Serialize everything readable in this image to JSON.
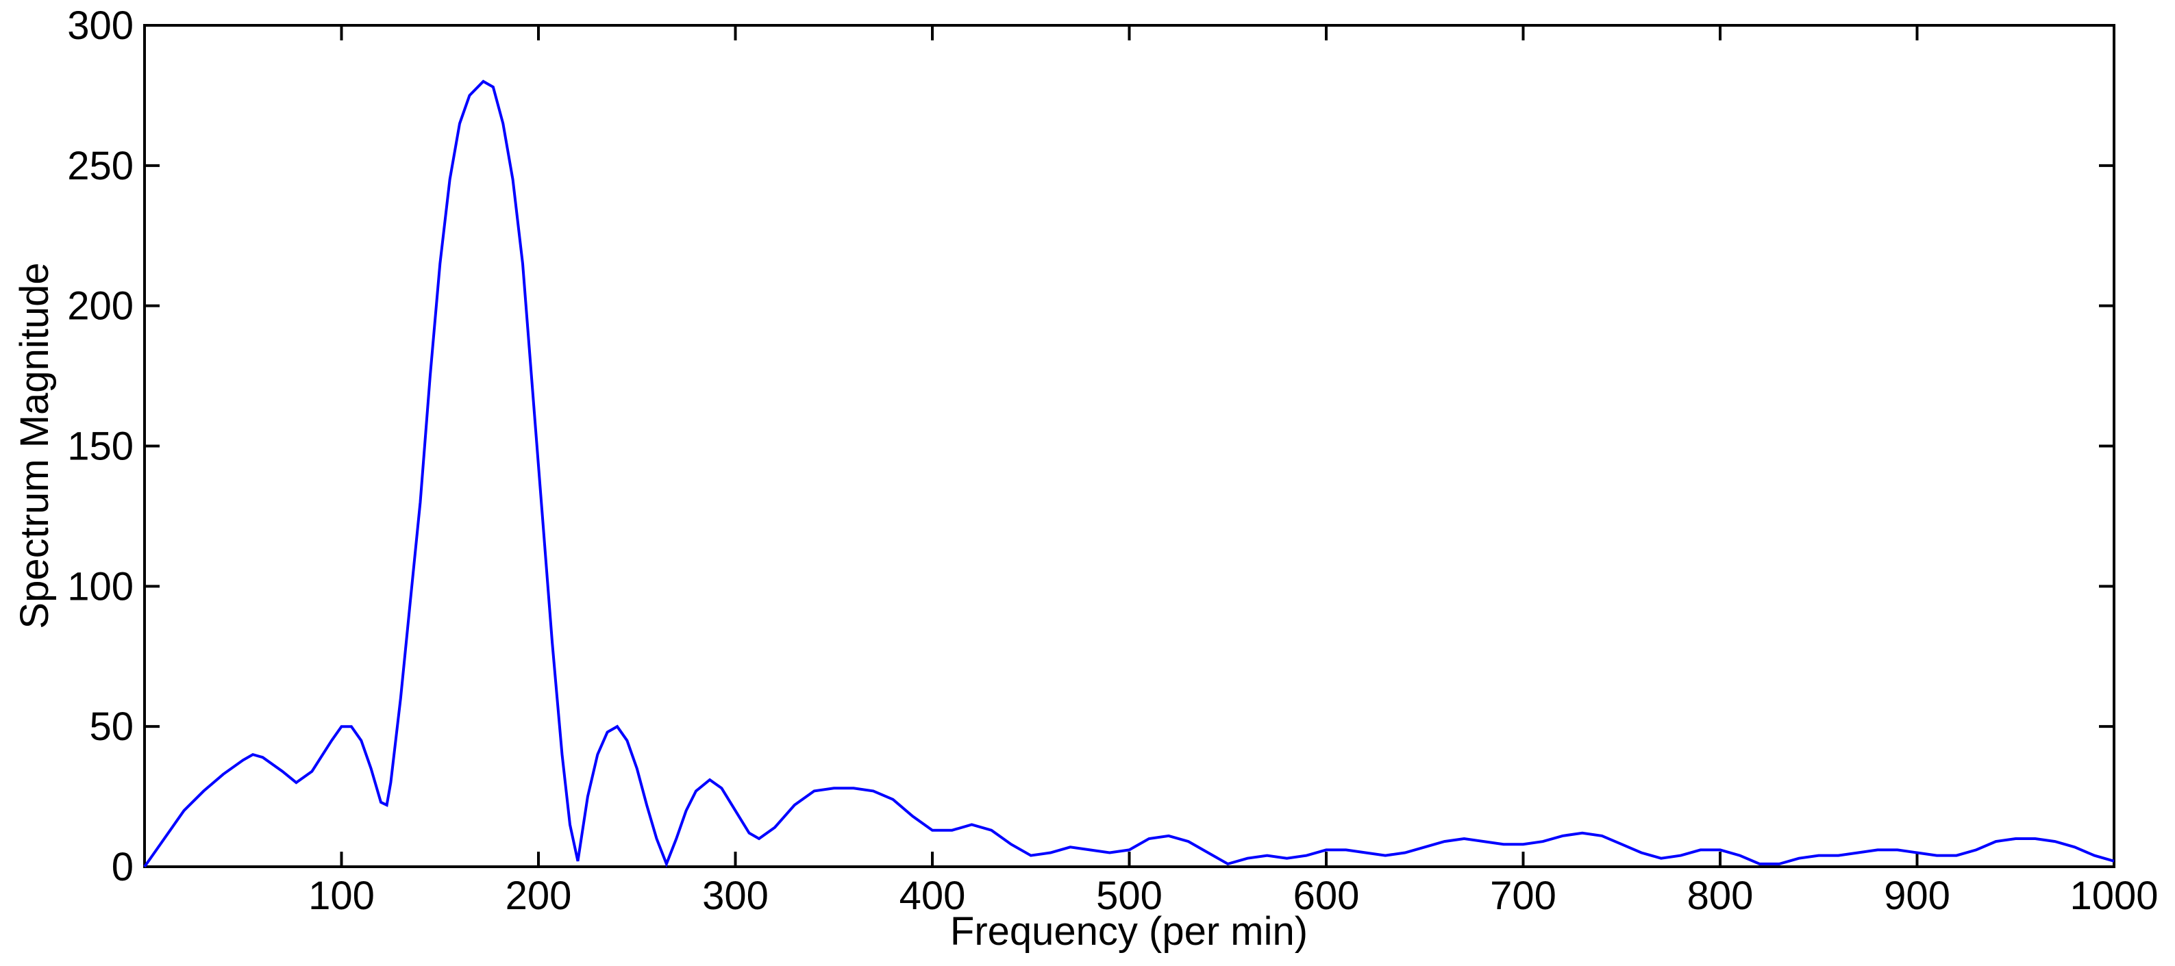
{
  "chart_data": {
    "type": "line",
    "x_label": "Frequency (per min)",
    "y_label": "Spectrum Magnitude",
    "xlim": [
      0,
      1000
    ],
    "ylim": [
      0,
      300
    ],
    "xticks": [
      100,
      200,
      300,
      400,
      500,
      600,
      700,
      800,
      900,
      1000
    ],
    "yticks": [
      0,
      50,
      100,
      150,
      200,
      250,
      300
    ],
    "grid": false,
    "series": [
      {
        "color": "#0000ff",
        "x": [
          0,
          10,
          20,
          30,
          40,
          50,
          55,
          60,
          70,
          77,
          85,
          95,
          100,
          105,
          110,
          115,
          120,
          123,
          125,
          130,
          135,
          140,
          145,
          150,
          155,
          160,
          165,
          172,
          177,
          182,
          187,
          192,
          197,
          202,
          207,
          212,
          216,
          220,
          225,
          230,
          235,
          240,
          245,
          250,
          255,
          260,
          265,
          270,
          275,
          280,
          287,
          293,
          300,
          307,
          312,
          320,
          330,
          340,
          350,
          360,
          370,
          380,
          390,
          400,
          410,
          420,
          430,
          440,
          450,
          460,
          470,
          480,
          490,
          500,
          510,
          520,
          530,
          540,
          550,
          560,
          570,
          580,
          590,
          600,
          610,
          620,
          630,
          640,
          650,
          660,
          670,
          680,
          690,
          700,
          710,
          720,
          730,
          740,
          750,
          760,
          770,
          780,
          790,
          800,
          810,
          820,
          830,
          840,
          850,
          860,
          870,
          880,
          890,
          900,
          910,
          920,
          930,
          940,
          950,
          960,
          970,
          980,
          990,
          1000
        ],
        "values": [
          0,
          10,
          20,
          27,
          33,
          38,
          40,
          39,
          34,
          30,
          34,
          45,
          50,
          50,
          45,
          35,
          23,
          22,
          30,
          60,
          95,
          130,
          175,
          215,
          245,
          265,
          275,
          280,
          278,
          265,
          245,
          215,
          170,
          125,
          80,
          40,
          15,
          2,
          25,
          40,
          48,
          50,
          45,
          35,
          22,
          10,
          1,
          10,
          20,
          27,
          31,
          28,
          20,
          12,
          10,
          14,
          22,
          27,
          28,
          28,
          27,
          24,
          18,
          13,
          13,
          15,
          13,
          8,
          4,
          5,
          7,
          6,
          5,
          6,
          10,
          11,
          9,
          5,
          1,
          3,
          4,
          3,
          4,
          6,
          6,
          5,
          4,
          5,
          7,
          9,
          10,
          9,
          8,
          8,
          9,
          11,
          12,
          11,
          8,
          5,
          3,
          4,
          6,
          6,
          4,
          1,
          1,
          3,
          4,
          4,
          5,
          6,
          6,
          5,
          4,
          4,
          6,
          9,
          10,
          10,
          9,
          7,
          4,
          2
        ]
      }
    ]
  }
}
